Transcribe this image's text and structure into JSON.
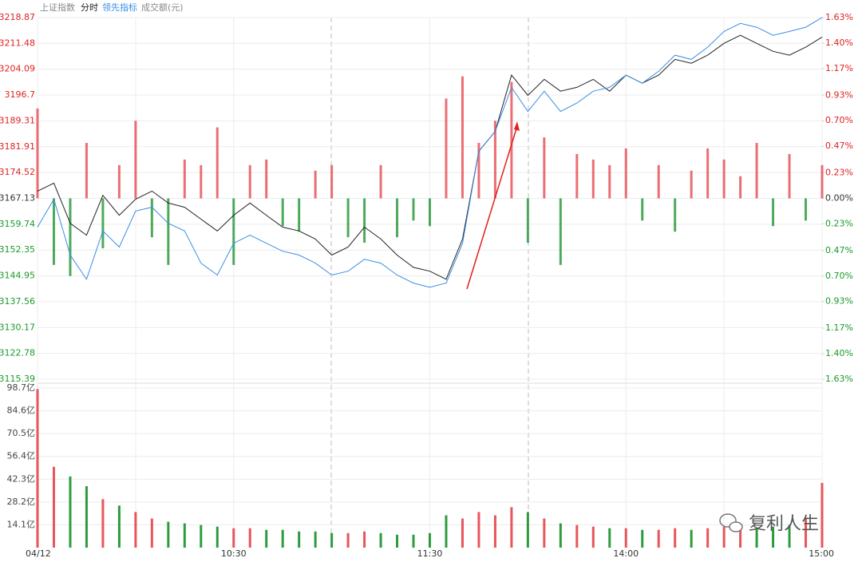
{
  "chart_data": {
    "type": "line",
    "tabs": [
      "分时",
      "成交额(元)"
    ],
    "watermark": "复利人生",
    "x": [
      0,
      5,
      10,
      15,
      20,
      25,
      30,
      35,
      40,
      45,
      50,
      55,
      60,
      65,
      70,
      75,
      80,
      85,
      90,
      95,
      100,
      105,
      110,
      115,
      120,
      125,
      130,
      135,
      140,
      145,
      150,
      155,
      160,
      165,
      170,
      175,
      180,
      185,
      190,
      195,
      200,
      205,
      210,
      215,
      220,
      225,
      230,
      235,
      240
    ],
    "xlim": [
      0,
      240
    ],
    "xticks": [
      {
        "value": 0,
        "label": "04/12"
      },
      {
        "value": 60,
        "label": "10:30"
      },
      {
        "value": 120,
        "label": "11:30"
      },
      {
        "value": 180,
        "label": "14:00"
      },
      {
        "value": 240,
        "label": "15:00"
      }
    ],
    "series": [
      {
        "name": "上证指数",
        "color": "#222222",
        "dashed_color": "#555555",
        "values": [
          3169.2,
          3171.5,
          3160.0,
          3156.6,
          3168.0,
          3162.3,
          3166.9,
          3169.2,
          3165.8,
          3164.6,
          3161.2,
          3157.8,
          3162.3,
          3165.8,
          3162.3,
          3158.9,
          3157.8,
          3155.5,
          3150.9,
          3153.2,
          3158.9,
          3155.5,
          3150.9,
          3147.4,
          3146.3,
          3144.0,
          3155.5,
          3180.6,
          3186.3,
          3202.4,
          3196.6,
          3201.2,
          3197.8,
          3198.9,
          3201.2,
          3197.8,
          3202.4,
          3200.1,
          3202.4,
          3206.9,
          3205.8,
          3208.1,
          3211.5,
          3213.8,
          3211.5,
          3209.2,
          3208.1,
          3210.4,
          3213.3
        ]
      },
      {
        "name": "领先指标",
        "color": "#3a8ee6",
        "values": [
          3158.9,
          3166.9,
          3150.9,
          3144.0,
          3157.8,
          3153.2,
          3163.5,
          3164.6,
          3160.0,
          3157.8,
          3148.6,
          3145.2,
          3154.3,
          3156.6,
          3154.3,
          3152.0,
          3150.9,
          3148.6,
          3145.2,
          3146.3,
          3149.7,
          3148.6,
          3145.2,
          3142.9,
          3141.7,
          3142.9,
          3154.3,
          3180.6,
          3186.3,
          3198.9,
          3192.0,
          3197.8,
          3192.0,
          3194.4,
          3197.8,
          3198.9,
          3202.4,
          3200.1,
          3203.5,
          3208.1,
          3206.9,
          3210.4,
          3214.9,
          3217.2,
          3216.1,
          3213.8,
          3214.9,
          3216.1,
          3218.9
        ]
      }
    ],
    "bars": {
      "axis": "y2",
      "up_color": "#e8555a",
      "down_color": "#2e9b3e",
      "values": [
        0.81,
        -0.6,
        -0.7,
        0.5,
        -0.45,
        0.3,
        0.7,
        -0.35,
        -0.6,
        0.35,
        0.3,
        0.64,
        -0.6,
        0.3,
        0.35,
        -0.25,
        -0.3,
        0.25,
        0.3,
        -0.35,
        -0.4,
        0.3,
        -0.35,
        -0.2,
        -0.25,
        0.9,
        1.1,
        0.5,
        0.7,
        1.05,
        -0.4,
        0.55,
        -0.6,
        0.4,
        0.35,
        0.3,
        0.45,
        -0.2,
        0.3,
        -0.3,
        0.25,
        0.45,
        0.35,
        0.2,
        0.5,
        -0.25,
        0.4,
        -0.2,
        0.3
      ]
    },
    "ylim": [
      3115.39,
      3218.87
    ],
    "yticks": [
      3218.87,
      3211.48,
      3204.09,
      3196.7,
      3189.31,
      3181.91,
      3174.52,
      3167.13,
      3159.74,
      3152.35,
      3144.95,
      3137.56,
      3130.17,
      3122.78,
      3115.39
    ],
    "y2lim": [
      -1.63,
      1.63
    ],
    "y2ticks": [
      {
        "value": 1.63,
        "label": "1.63%"
      },
      {
        "value": 1.4,
        "label": "1.40%"
      },
      {
        "value": 1.17,
        "label": "1.17%"
      },
      {
        "value": 0.93,
        "label": "0.93%"
      },
      {
        "value": 0.7,
        "label": "0.70%"
      },
      {
        "value": 0.47,
        "label": "0.47%"
      },
      {
        "value": 0.23,
        "label": "0.23%"
      },
      {
        "value": 0,
        "label": "0.00%"
      },
      {
        "value": -0.23,
        "label": "0.23%"
      },
      {
        "value": -0.47,
        "label": "0.47%"
      },
      {
        "value": -0.7,
        "label": "0.70%"
      },
      {
        "value": -0.93,
        "label": "0.93%"
      },
      {
        "value": -1.17,
        "label": "1.17%"
      },
      {
        "value": -1.4,
        "label": "1.40%"
      },
      {
        "value": -1.63,
        "label": "1.63%"
      }
    ],
    "up_color": "#e02020",
    "flat_color": "#333333",
    "down_color": "#1a9a2a",
    "volume": {
      "up_color": "#e8555a",
      "down_color": "#2e9b3e",
      "values": [
        98,
        50,
        44,
        38,
        30,
        26,
        22,
        18,
        16,
        15,
        14,
        13,
        12,
        12,
        11,
        11,
        10,
        10,
        9,
        9,
        10,
        9,
        8,
        8,
        9,
        20,
        18,
        22,
        20,
        25,
        22,
        18,
        15,
        14,
        13,
        12,
        12,
        11,
        11,
        12,
        11,
        12,
        13,
        12,
        12,
        13,
        14,
        18,
        40
      ],
      "ylim": [
        0,
        98.7
      ],
      "yticks": [
        {
          "value": 98.7,
          "label": "98.7亿"
        },
        {
          "value": 84.6,
          "label": "84.6亿"
        },
        {
          "value": 70.5,
          "label": "70.5亿"
        },
        {
          "value": 56.4,
          "label": "56.4亿"
        },
        {
          "value": 42.3,
          "label": "42.3亿"
        },
        {
          "value": 28.2,
          "label": "28.2亿"
        },
        {
          "value": 14.1,
          "label": "14.1亿"
        }
      ]
    },
    "grid": true
  }
}
